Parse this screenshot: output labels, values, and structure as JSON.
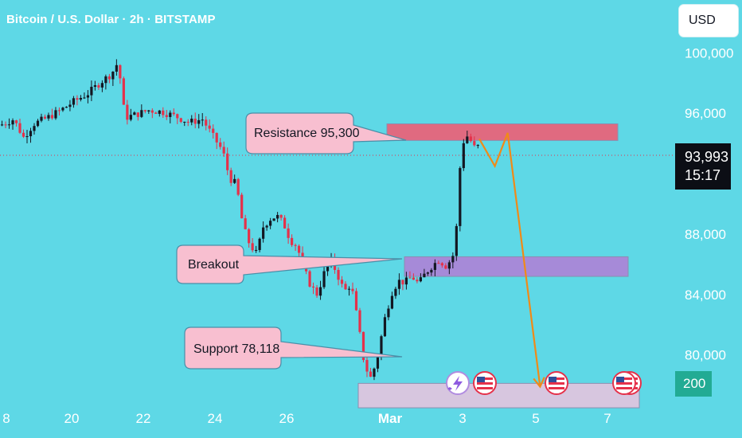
{
  "header": {
    "title": "Bitcoin / U.S. Dollar · 2h · BITSTAMP"
  },
  "currency_button": {
    "label": "USD"
  },
  "last_price": {
    "price": "93,993",
    "countdown": "15:17"
  },
  "volume_badge": {
    "label": "200"
  },
  "colors": {
    "background": "#5ed8e6",
    "up_candle": "#131722",
    "down_candle": "#e5314a",
    "resistance_zone": "#e06a80",
    "breakout_zone": "#a68ad8",
    "support_zone": "#d7c6df",
    "projection_line": "#f08a18",
    "callout_fill": "#f8bfd0",
    "callout_border": "#4a8fa8"
  },
  "annotations": {
    "resistance": "Resistance 95,300",
    "breakout": "Breakout",
    "support": "Support 78,118"
  },
  "event_icons": [
    "lightning-icon",
    "us-flag-icon",
    "us-flag-icon",
    "us-flag-icon"
  ],
  "chart_data": {
    "type": "candlestick",
    "title": "Bitcoin / U.S. Dollar · 2h · BITSTAMP",
    "y_axis": {
      "ticks": [
        "100,000",
        "96,000",
        "88,000",
        "84,000",
        "80,000"
      ],
      "tick_values": [
        100000,
        96000,
        88000,
        84000,
        80000
      ],
      "visible_range": [
        74500,
        103500
      ],
      "position": "right"
    },
    "x_axis": {
      "ticks": [
        "8",
        "20",
        "22",
        "24",
        "26",
        "Mar",
        "3",
        "5",
        "7"
      ]
    },
    "current_price": 93993,
    "zones": [
      {
        "name": "Resistance",
        "low": 94200,
        "high": 95300
      },
      {
        "name": "Breakout",
        "low": 85200,
        "high": 86500
      },
      {
        "name": "Support",
        "low": 76500,
        "high": 78118
      }
    ],
    "price_path": [
      [
        0.0,
        95200
      ],
      [
        0.02,
        95600
      ],
      [
        0.035,
        94400
      ],
      [
        0.05,
        95300
      ],
      [
        0.07,
        95700
      ],
      [
        0.09,
        96200
      ],
      [
        0.11,
        96800
      ],
      [
        0.13,
        97300
      ],
      [
        0.15,
        98100
      ],
      [
        0.165,
        98600
      ],
      [
        0.175,
        99400
      ],
      [
        0.185,
        95700
      ],
      [
        0.2,
        95900
      ],
      [
        0.22,
        96200
      ],
      [
        0.24,
        96100
      ],
      [
        0.26,
        95800
      ],
      [
        0.28,
        95400
      ],
      [
        0.3,
        95600
      ],
      [
        0.315,
        94500
      ],
      [
        0.33,
        93500
      ],
      [
        0.34,
        91700
      ],
      [
        0.35,
        91300
      ],
      [
        0.36,
        88500
      ],
      [
        0.37,
        87300
      ],
      [
        0.38,
        86700
      ],
      [
        0.39,
        88500
      ],
      [
        0.4,
        89000
      ],
      [
        0.41,
        89200
      ],
      [
        0.42,
        88700
      ],
      [
        0.43,
        87600
      ],
      [
        0.44,
        87200
      ],
      [
        0.45,
        85700
      ],
      [
        0.46,
        84600
      ],
      [
        0.47,
        84000
      ],
      [
        0.48,
        85400
      ],
      [
        0.49,
        86300
      ],
      [
        0.5,
        85300
      ],
      [
        0.51,
        84200
      ],
      [
        0.52,
        84700
      ],
      [
        0.53,
        82200
      ],
      [
        0.54,
        79300
      ],
      [
        0.55,
        78400
      ],
      [
        0.56,
        80100
      ],
      [
        0.57,
        82400
      ],
      [
        0.58,
        84100
      ],
      [
        0.59,
        84900
      ],
      [
        0.6,
        84800
      ],
      [
        0.61,
        85200
      ],
      [
        0.62,
        84700
      ],
      [
        0.63,
        85400
      ],
      [
        0.64,
        85900
      ],
      [
        0.65,
        86300
      ],
      [
        0.66,
        85900
      ],
      [
        0.67,
        86400
      ],
      [
        0.675,
        87500
      ],
      [
        0.68,
        91800
      ],
      [
        0.685,
        93900
      ],
      [
        0.69,
        94600
      ],
      [
        0.7,
        94000
      ],
      [
        0.705,
        93500
      ],
      [
        0.71,
        93993
      ]
    ],
    "projection": [
      {
        "x_frac": 0.71,
        "price": 94300
      },
      {
        "x_frac": 0.733,
        "price": 92500
      },
      {
        "x_frac": 0.752,
        "price": 94700
      },
      {
        "x_frac": 0.8,
        "price": 77900
      }
    ]
  }
}
